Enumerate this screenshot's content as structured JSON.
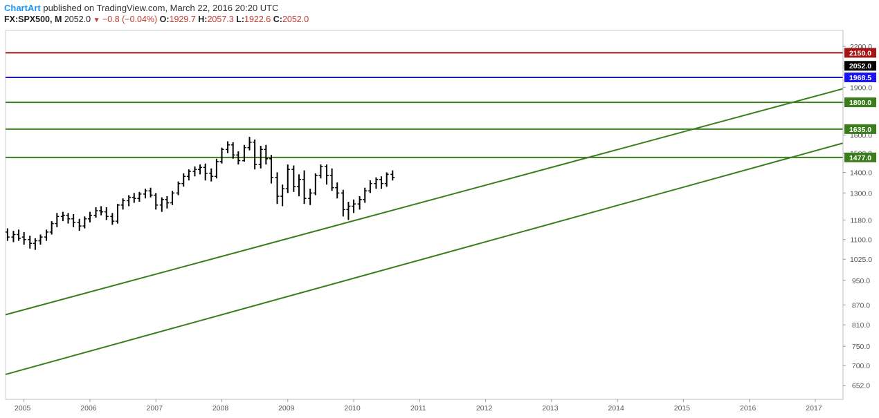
{
  "header": {
    "brand": "ChartArt",
    "published": " published on TradingView.com, March 22, 2016 20:20 UTC",
    "symbol": "FX:SPX500, M",
    "last": "2052.0",
    "change": "−0.8 (−0.04%)",
    "o_label": "O:",
    "o_value": "1929.7",
    "h_label": "H:",
    "h_value": "2057.3",
    "l_label": "L:",
    "l_value": "1922.6",
    "c_label": "C:",
    "c_value": "2052.0"
  },
  "colors": {
    "bar": "#000000",
    "red_line": "#a31515",
    "blue_line": "#1a14f0",
    "green_line": "#3b7d1c",
    "price_box": "#000000"
  },
  "chart_data": {
    "type": "ohlc",
    "scale": "log",
    "ylim": [
      620,
      2330
    ],
    "xlim": [
      2004.72,
      2017.42
    ],
    "x_ticks": [
      "2005",
      "2006",
      "2007",
      "2008",
      "2009",
      "2010",
      "2011",
      "2012",
      "2013",
      "2014",
      "2015",
      "2016",
      "2017"
    ],
    "y_ticks": [
      "652.0",
      "700.0",
      "750.0",
      "810.0",
      "870.0",
      "950.0",
      "1025.0",
      "1100.0",
      "1180.0",
      "1300.0",
      "1400.0",
      "1500.0",
      "1600.0",
      "1800.0",
      "1900.0",
      "2050.0",
      "2200.0"
    ],
    "horizontal_lines": [
      {
        "value": 2150.0,
        "label": "2150.0",
        "color": "#a31515"
      },
      {
        "value": 1968.5,
        "label": "1968.5",
        "color": "#1a14f0"
      },
      {
        "value": 1800.0,
        "label": "1800.0",
        "color": "#3b7d1c"
      },
      {
        "value": 1635.0,
        "label": "1635.0",
        "color": "#3b7d1c"
      },
      {
        "value": 1477.0,
        "label": "1477.0",
        "color": "#3b7d1c"
      }
    ],
    "current_price": {
      "value": 2052.0,
      "label": "2052.0"
    },
    "trendlines": [
      {
        "start": [
          2004.72,
          840
        ],
        "end": [
          2017.42,
          1890
        ]
      },
      {
        "start": [
          2004.72,
          678
        ],
        "end": [
          2017.42,
          1555
        ]
      }
    ],
    "bars": [
      {
        "x": 2004.75,
        "o": 1130,
        "h": 1145,
        "l": 1095,
        "c": 1110
      },
      {
        "x": 2004.84,
        "o": 1110,
        "h": 1135,
        "l": 1090,
        "c": 1120
      },
      {
        "x": 2004.92,
        "o": 1120,
        "h": 1140,
        "l": 1095,
        "c": 1105
      },
      {
        "x": 2005.0,
        "o": 1110,
        "h": 1130,
        "l": 1080,
        "c": 1100
      },
      {
        "x": 2005.09,
        "o": 1100,
        "h": 1115,
        "l": 1065,
        "c": 1085
      },
      {
        "x": 2005.17,
        "o": 1085,
        "h": 1105,
        "l": 1060,
        "c": 1095
      },
      {
        "x": 2005.25,
        "o": 1095,
        "h": 1120,
        "l": 1080,
        "c": 1110
      },
      {
        "x": 2005.34,
        "o": 1110,
        "h": 1140,
        "l": 1095,
        "c": 1130
      },
      {
        "x": 2005.42,
        "o": 1130,
        "h": 1175,
        "l": 1120,
        "c": 1165
      },
      {
        "x": 2005.5,
        "o": 1165,
        "h": 1210,
        "l": 1150,
        "c": 1195
      },
      {
        "x": 2005.59,
        "o": 1195,
        "h": 1215,
        "l": 1175,
        "c": 1200
      },
      {
        "x": 2005.67,
        "o": 1200,
        "h": 1210,
        "l": 1165,
        "c": 1185
      },
      {
        "x": 2005.75,
        "o": 1185,
        "h": 1205,
        "l": 1150,
        "c": 1170
      },
      {
        "x": 2005.84,
        "o": 1170,
        "h": 1185,
        "l": 1135,
        "c": 1155
      },
      {
        "x": 2005.92,
        "o": 1155,
        "h": 1195,
        "l": 1145,
        "c": 1185
      },
      {
        "x": 2006.0,
        "o": 1185,
        "h": 1215,
        "l": 1170,
        "c": 1200
      },
      {
        "x": 2006.09,
        "o": 1200,
        "h": 1235,
        "l": 1190,
        "c": 1220
      },
      {
        "x": 2006.17,
        "o": 1220,
        "h": 1240,
        "l": 1200,
        "c": 1215
      },
      {
        "x": 2006.25,
        "o": 1215,
        "h": 1235,
        "l": 1180,
        "c": 1195
      },
      {
        "x": 2006.34,
        "o": 1195,
        "h": 1210,
        "l": 1160,
        "c": 1175
      },
      {
        "x": 2006.42,
        "o": 1175,
        "h": 1250,
        "l": 1165,
        "c": 1245
      },
      {
        "x": 2006.5,
        "o": 1245,
        "h": 1275,
        "l": 1225,
        "c": 1265
      },
      {
        "x": 2006.59,
        "o": 1265,
        "h": 1290,
        "l": 1240,
        "c": 1280
      },
      {
        "x": 2006.67,
        "o": 1280,
        "h": 1300,
        "l": 1255,
        "c": 1275
      },
      {
        "x": 2006.75,
        "o": 1275,
        "h": 1305,
        "l": 1260,
        "c": 1295
      },
      {
        "x": 2006.84,
        "o": 1295,
        "h": 1320,
        "l": 1275,
        "c": 1310
      },
      {
        "x": 2006.92,
        "o": 1310,
        "h": 1325,
        "l": 1280,
        "c": 1290
      },
      {
        "x": 2007.0,
        "o": 1290,
        "h": 1300,
        "l": 1225,
        "c": 1245
      },
      {
        "x": 2007.09,
        "o": 1245,
        "h": 1280,
        "l": 1215,
        "c": 1270
      },
      {
        "x": 2007.17,
        "o": 1270,
        "h": 1285,
        "l": 1230,
        "c": 1255
      },
      {
        "x": 2007.25,
        "o": 1255,
        "h": 1310,
        "l": 1245,
        "c": 1300
      },
      {
        "x": 2007.34,
        "o": 1300,
        "h": 1355,
        "l": 1290,
        "c": 1345
      },
      {
        "x": 2007.42,
        "o": 1345,
        "h": 1395,
        "l": 1330,
        "c": 1380
      },
      {
        "x": 2007.5,
        "o": 1380,
        "h": 1415,
        "l": 1360,
        "c": 1405
      },
      {
        "x": 2007.59,
        "o": 1405,
        "h": 1430,
        "l": 1380,
        "c": 1415
      },
      {
        "x": 2007.67,
        "o": 1415,
        "h": 1440,
        "l": 1390,
        "c": 1425
      },
      {
        "x": 2007.75,
        "o": 1425,
        "h": 1445,
        "l": 1360,
        "c": 1395
      },
      {
        "x": 2007.84,
        "o": 1395,
        "h": 1420,
        "l": 1355,
        "c": 1380
      },
      {
        "x": 2007.92,
        "o": 1380,
        "h": 1470,
        "l": 1370,
        "c": 1455
      },
      {
        "x": 2008.0,
        "o": 1455,
        "h": 1530,
        "l": 1445,
        "c": 1520
      },
      {
        "x": 2008.09,
        "o": 1520,
        "h": 1565,
        "l": 1500,
        "c": 1545
      },
      {
        "x": 2008.17,
        "o": 1545,
        "h": 1560,
        "l": 1470,
        "c": 1490
      },
      {
        "x": 2008.25,
        "o": 1490,
        "h": 1510,
        "l": 1440,
        "c": 1460
      },
      {
        "x": 2008.34,
        "o": 1460,
        "h": 1545,
        "l": 1455,
        "c": 1530
      },
      {
        "x": 2008.42,
        "o": 1530,
        "h": 1590,
        "l": 1515,
        "c": 1560
      },
      {
        "x": 2008.5,
        "o": 1560,
        "h": 1575,
        "l": 1415,
        "c": 1440
      },
      {
        "x": 2008.59,
        "o": 1440,
        "h": 1540,
        "l": 1420,
        "c": 1520
      },
      {
        "x": 2008.67,
        "o": 1520,
        "h": 1545,
        "l": 1440,
        "c": 1470
      },
      {
        "x": 2008.75,
        "o": 1470,
        "h": 1490,
        "l": 1345,
        "c": 1375
      },
      {
        "x": 2008.84,
        "o": 1375,
        "h": 1400,
        "l": 1250,
        "c": 1285
      },
      {
        "x": 2008.92,
        "o": 1285,
        "h": 1340,
        "l": 1240,
        "c": 1320
      },
      {
        "x": 2009.0,
        "o": 1320,
        "h": 1440,
        "l": 1300,
        "c": 1415
      },
      {
        "x": 2009.09,
        "o": 1415,
        "h": 1435,
        "l": 1305,
        "c": 1330
      },
      {
        "x": 2009.17,
        "o": 1330,
        "h": 1390,
        "l": 1285,
        "c": 1365
      },
      {
        "x": 2009.25,
        "o": 1365,
        "h": 1410,
        "l": 1250,
        "c": 1275
      },
      {
        "x": 2009.34,
        "o": 1275,
        "h": 1320,
        "l": 1245,
        "c": 1300
      },
      {
        "x": 2009.42,
        "o": 1300,
        "h": 1395,
        "l": 1290,
        "c": 1385
      },
      {
        "x": 2009.5,
        "o": 1385,
        "h": 1440,
        "l": 1370,
        "c": 1430
      },
      {
        "x": 2009.59,
        "o": 1430,
        "h": 1440,
        "l": 1340,
        "c": 1385
      },
      {
        "x": 2009.67,
        "o": 1385,
        "h": 1420,
        "l": 1310,
        "c": 1325
      },
      {
        "x": 2009.75,
        "o": 1325,
        "h": 1350,
        "l": 1275,
        "c": 1300
      },
      {
        "x": 2009.84,
        "o": 1300,
        "h": 1315,
        "l": 1195,
        "c": 1225
      },
      {
        "x": 2009.92,
        "o": 1225,
        "h": 1260,
        "l": 1180,
        "c": 1240
      },
      {
        "x": 2010.0,
        "o": 1240,
        "h": 1270,
        "l": 1210,
        "c": 1250
      },
      {
        "x": 2010.09,
        "o": 1250,
        "h": 1285,
        "l": 1225,
        "c": 1270
      },
      {
        "x": 2010.17,
        "o": 1270,
        "h": 1325,
        "l": 1255,
        "c": 1310
      },
      {
        "x": 2010.25,
        "o": 1310,
        "h": 1360,
        "l": 1300,
        "c": 1345
      },
      {
        "x": 2010.34,
        "o": 1345,
        "h": 1375,
        "l": 1320,
        "c": 1365
      },
      {
        "x": 2010.42,
        "o": 1365,
        "h": 1380,
        "l": 1320,
        "c": 1345
      },
      {
        "x": 2010.5,
        "o": 1345,
        "h": 1400,
        "l": 1330,
        "c": 1390
      },
      {
        "x": 2010.59,
        "o": 1390,
        "h": 1410,
        "l": 1360,
        "c": 1375
      }
    ]
  }
}
